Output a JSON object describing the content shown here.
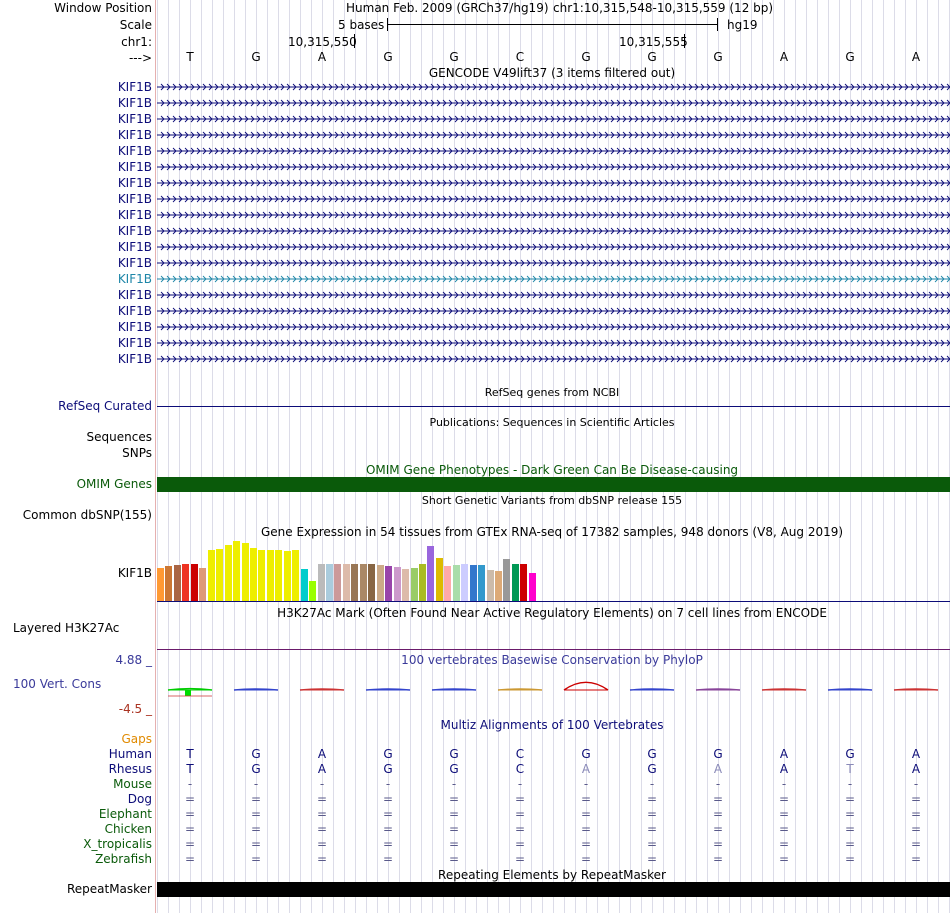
{
  "header": {
    "window_position_label": "Window Position",
    "scale_label": "Scale",
    "chr_label": "chr1:",
    "strand_label": "--->",
    "assembly": "Human Feb. 2009 (GRCh37/hg19)",
    "position": "chr1:10,315,548-10,315,559 (12 bp)",
    "scale_text": "5 bases",
    "db": "hg19",
    "coord1": "10,315,550",
    "coord2": "10,315,555",
    "bases": [
      "T",
      "G",
      "A",
      "G",
      "G",
      "C",
      "G",
      "G",
      "G",
      "A",
      "G",
      "A"
    ]
  },
  "gencode": {
    "title": "GENCODE V49lift37 (3 items filtered out)",
    "items": [
      "KIF1B",
      "KIF1B",
      "KIF1B",
      "KIF1B",
      "KIF1B",
      "KIF1B",
      "KIF1B",
      "KIF1B",
      "KIF1B",
      "KIF1B",
      "KIF1B",
      "KIF1B",
      "KIF1B",
      "KIF1B",
      "KIF1B",
      "KIF1B",
      "KIF1B",
      "KIF1B"
    ],
    "highlight_index": 12,
    "color": "#0c0c78",
    "highlight_color": "#1e86a8"
  },
  "refseq": {
    "title": "RefSeq genes from NCBI",
    "label": "RefSeq Curated"
  },
  "publications": {
    "title": "Publications: Sequences in Scientific Articles",
    "label1": "Sequences",
    "label2": "SNPs"
  },
  "omim": {
    "title": "OMIM Gene Phenotypes - Dark Green Can Be Disease-causing",
    "label": "OMIM Genes",
    "color": "#0a5a0a"
  },
  "dbsnp": {
    "title": "Short Genetic Variants from dbSNP release 155",
    "label": "Common dbSNP(155)"
  },
  "gtex": {
    "title": "Gene Expression in 54 tissues from GTEx RNA-seq of 17382 samples, 948 donors (V8, Aug 2019)",
    "label": "KIF1B",
    "bars": [
      {
        "v": 0.55,
        "c": "#ff9933"
      },
      {
        "v": 0.58,
        "c": "#cc7733"
      },
      {
        "v": 0.6,
        "c": "#aa6644"
      },
      {
        "v": 0.62,
        "c": "#ee3322"
      },
      {
        "v": 0.62,
        "c": "#cc0000"
      },
      {
        "v": 0.55,
        "c": "#dd9977"
      },
      {
        "v": 0.85,
        "c": "#eeee00"
      },
      {
        "v": 0.87,
        "c": "#eeee00"
      },
      {
        "v": 0.93,
        "c": "#eeee00"
      },
      {
        "v": 1.0,
        "c": "#eeee00"
      },
      {
        "v": 0.96,
        "c": "#eeee00"
      },
      {
        "v": 0.89,
        "c": "#eeee00"
      },
      {
        "v": 0.85,
        "c": "#eeee00"
      },
      {
        "v": 0.85,
        "c": "#eeee00"
      },
      {
        "v": 0.85,
        "c": "#eeee00"
      },
      {
        "v": 0.84,
        "c": "#eeee00"
      },
      {
        "v": 0.85,
        "c": "#eeee00"
      },
      {
        "v": 0.54,
        "c": "#00cccc"
      },
      {
        "v": 0.33,
        "c": "#99ff00"
      },
      {
        "v": 0.62,
        "c": "#bbbbbb"
      },
      {
        "v": 0.62,
        "c": "#aaccdd"
      },
      {
        "v": 0.62,
        "c": "#cc9999"
      },
      {
        "v": 0.62,
        "c": "#ddbbaa"
      },
      {
        "v": 0.62,
        "c": "#997755"
      },
      {
        "v": 0.62,
        "c": "#aa8866"
      },
      {
        "v": 0.62,
        "c": "#886644"
      },
      {
        "v": 0.6,
        "c": "#ccaa88"
      },
      {
        "v": 0.58,
        "c": "#9944aa"
      },
      {
        "v": 0.56,
        "c": "#cc99cc"
      },
      {
        "v": 0.54,
        "c": "#ddbbaa"
      },
      {
        "v": 0.55,
        "c": "#99cc66"
      },
      {
        "v": 0.62,
        "c": "#aabb22"
      },
      {
        "v": 0.92,
        "c": "#9966dd"
      },
      {
        "v": 0.72,
        "c": "#ddbb00"
      },
      {
        "v": 0.58,
        "c": "#ffaaaa"
      },
      {
        "v": 0.6,
        "c": "#aaddaa"
      },
      {
        "v": 0.62,
        "c": "#ccccff"
      },
      {
        "v": 0.6,
        "c": "#3377cc"
      },
      {
        "v": 0.6,
        "c": "#3399cc"
      },
      {
        "v": 0.52,
        "c": "#ccbbaa"
      },
      {
        "v": 0.5,
        "c": "#ddaa77"
      },
      {
        "v": 0.7,
        "c": "#999999"
      },
      {
        "v": 0.62,
        "c": "#009955"
      },
      {
        "v": 0.62,
        "c": "#cc0000"
      },
      {
        "v": 0.46,
        "c": "#ff00cc"
      }
    ]
  },
  "h3k27ac": {
    "title": "H3K27Ac Mark (Often Found Near Active Regulatory Elements) on 7 cell lines from ENCODE",
    "label": "Layered H3K27Ac"
  },
  "phylop": {
    "title": "100 vertebrates Basewise Conservation by PhyloP",
    "label": "100 Vert. Cons",
    "ymax": "4.88 _",
    "ymin": "-4.5 _",
    "marks": [
      {
        "c": "#00cc00",
        "peak": 0.1
      },
      {
        "c": "#3344cc",
        "peak": 0.05
      },
      {
        "c": "#cc3333",
        "peak": 0.05
      },
      {
        "c": "#3344cc",
        "peak": 0.05
      },
      {
        "c": "#3344cc",
        "peak": 0.05
      },
      {
        "c": "#cc9933",
        "peak": 0.05
      },
      {
        "c": "#cc0000",
        "peak": 0.55
      },
      {
        "c": "#3344cc",
        "peak": 0.05
      },
      {
        "c": "#884499",
        "peak": 0.04
      },
      {
        "c": "#cc3333",
        "peak": 0.04
      },
      {
        "c": "#3344cc",
        "peak": 0.04
      },
      {
        "c": "#cc3333",
        "peak": 0.04
      }
    ]
  },
  "multiz": {
    "title": "Multiz Alignments of 100 Vertebrates",
    "gaps_label": "Gaps",
    "species": [
      {
        "name": "Human",
        "color": "#0c0c78",
        "row": [
          "T",
          "G",
          "A",
          "G",
          "G",
          "C",
          "G",
          "G",
          "G",
          "A",
          "G",
          "A"
        ]
      },
      {
        "name": "Rhesus",
        "color": "#0c0c78",
        "row": [
          "T",
          "G",
          "A",
          "G",
          "G",
          "C",
          "A",
          "G",
          "A",
          "A",
          "T",
          "A"
        ]
      },
      {
        "name": "Mouse",
        "color": "#0a5a0a",
        "row": [
          "-",
          "-",
          "-",
          "-",
          "-",
          "-",
          "-",
          "-",
          "-",
          "-",
          "-",
          "-"
        ]
      },
      {
        "name": "Dog",
        "color": "#0c0c78",
        "row": [
          "=",
          "=",
          "=",
          "=",
          "=",
          "=",
          "=",
          "=",
          "=",
          "=",
          "=",
          "="
        ]
      },
      {
        "name": "Elephant",
        "color": "#0a5a0a",
        "row": [
          "=",
          "=",
          "=",
          "=",
          "=",
          "=",
          "=",
          "=",
          "=",
          "=",
          "=",
          "="
        ]
      },
      {
        "name": "Chicken",
        "color": "#0a5a0a",
        "row": [
          "=",
          "=",
          "=",
          "=",
          "=",
          "=",
          "=",
          "=",
          "=",
          "=",
          "=",
          "="
        ]
      },
      {
        "name": "X_tropicalis",
        "color": "#0a5a0a",
        "row": [
          "=",
          "=",
          "=",
          "=",
          "=",
          "=",
          "=",
          "=",
          "=",
          "=",
          "=",
          "="
        ]
      },
      {
        "name": "Zebrafish",
        "color": "#0a5a0a",
        "row": [
          "=",
          "=",
          "=",
          "=",
          "=",
          "=",
          "=",
          "=",
          "=",
          "=",
          "=",
          "="
        ]
      }
    ],
    "rhesus_mismatch": [
      6,
      8,
      10
    ]
  },
  "repeatmasker": {
    "title": "Repeating Elements by RepeatMasker",
    "label": "RepeatMasker"
  }
}
